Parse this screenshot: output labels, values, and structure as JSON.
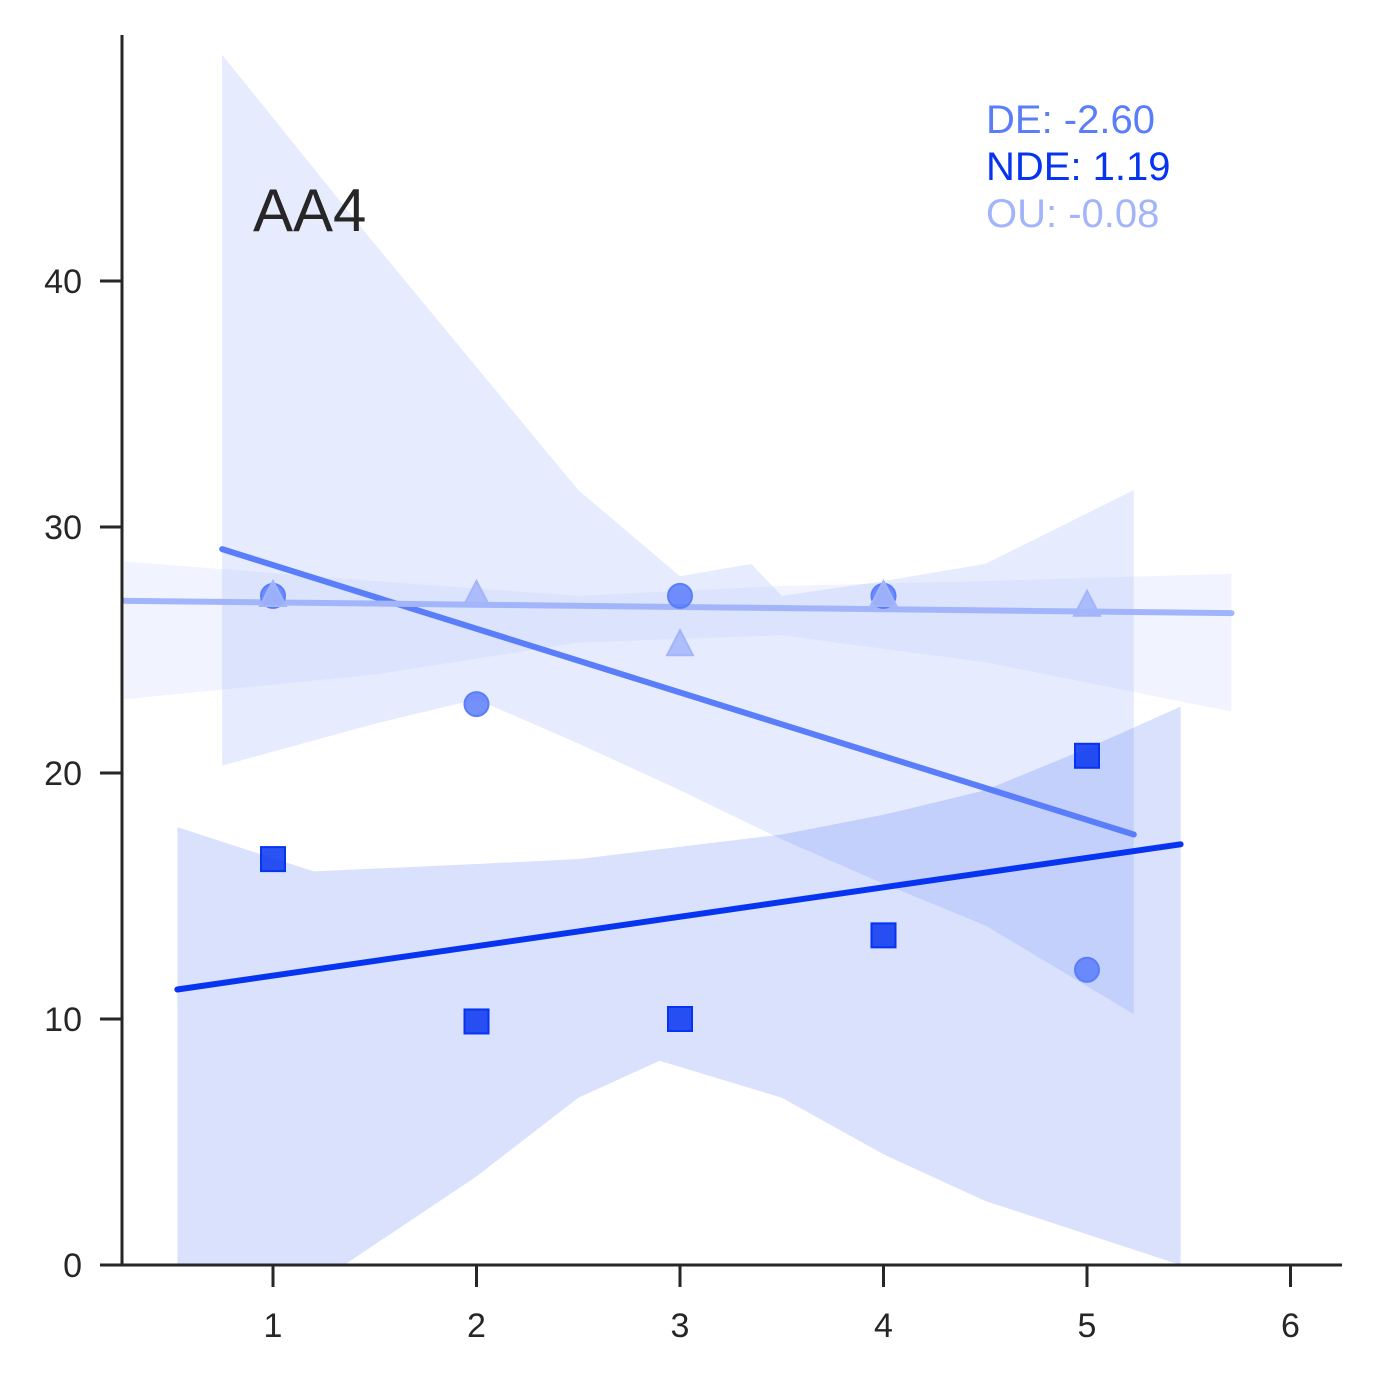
{
  "chart_data": {
    "type": "scatter",
    "title": "",
    "xlabel": "",
    "ylabel": "",
    "xlim": [
      0.25,
      6.25
    ],
    "ylim": [
      0,
      50
    ],
    "xticks": [
      "1",
      "2",
      "3",
      "4",
      "5",
      "6"
    ],
    "yticks": [
      "0",
      "10",
      "20",
      "30",
      "40"
    ],
    "grid": false,
    "panel_label": "AA4",
    "annotations": [
      {
        "text": "DE: -2.60",
        "color": "#5a7dfa"
      },
      {
        "text": "NDE: 1.19",
        "color": "#0634f0"
      },
      {
        "text": "OU: -0.08",
        "color": "#a3b5fa"
      }
    ],
    "series": [
      {
        "marker": "circle",
        "color": "#5a7dfa",
        "points": [
          [
            1,
            27.2
          ],
          [
            2,
            22.8
          ],
          [
            3,
            27.2
          ],
          [
            4,
            27.2
          ],
          [
            5,
            12.0
          ]
        ],
        "fit": {
          "x": [
            0.75,
            5.23
          ],
          "y": [
            29.1,
            17.5
          ]
        },
        "band": {
          "upper": [
            [
              0.75,
              49.2
            ],
            [
              1.5,
              41.5
            ],
            [
              2.0,
              36.5
            ],
            [
              2.5,
              31.5
            ],
            [
              3.0,
              28.0
            ],
            [
              3.35,
              28.5
            ],
            [
              3.5,
              27.2
            ],
            [
              4.0,
              27.8
            ],
            [
              4.5,
              28.5
            ],
            [
              5.23,
              31.5
            ]
          ],
          "lower": [
            [
              0.75,
              20.3
            ],
            [
              1.5,
              22.0
            ],
            [
              2.0,
              23.0
            ],
            [
              2.5,
              21.2
            ],
            [
              3.0,
              19.3
            ],
            [
              3.5,
              17.3
            ],
            [
              4.0,
              15.5
            ],
            [
              4.5,
              13.8
            ],
            [
              5.23,
              10.2
            ]
          ]
        }
      },
      {
        "marker": "square",
        "color": "#0634f0",
        "points": [
          [
            1,
            16.5
          ],
          [
            2,
            9.9
          ],
          [
            3,
            10.0
          ],
          [
            4,
            13.4
          ],
          [
            5,
            20.7
          ]
        ],
        "fit": {
          "x": [
            0.53,
            5.46
          ],
          "y": [
            11.2,
            17.1
          ]
        },
        "band": {
          "upper": [
            [
              0.53,
              17.8
            ],
            [
              1.2,
              16.0
            ],
            [
              2.0,
              16.3
            ],
            [
              2.5,
              16.5
            ],
            [
              3.0,
              17.0
            ],
            [
              3.5,
              17.5
            ],
            [
              4.0,
              18.3
            ],
            [
              4.5,
              19.3
            ],
            [
              5.0,
              21.0
            ],
            [
              5.46,
              22.7
            ]
          ],
          "lower": [
            [
              0.53,
              0
            ],
            [
              1.35,
              0
            ],
            [
              2.0,
              3.6
            ],
            [
              2.5,
              6.8
            ],
            [
              2.9,
              8.3
            ],
            [
              3.5,
              6.8
            ],
            [
              4.0,
              4.5
            ],
            [
              4.5,
              2.6
            ],
            [
              5.46,
              0
            ]
          ]
        }
      },
      {
        "marker": "triangle",
        "color": "#a3b5fa",
        "points": [
          [
            1,
            27.2
          ],
          [
            2,
            27.2
          ],
          [
            3,
            25.2
          ],
          [
            4,
            27.2
          ],
          [
            5,
            26.8
          ]
        ],
        "fit": {
          "x": [
            0.27,
            5.71
          ],
          "y": [
            27.0,
            26.5
          ]
        },
        "band": {
          "upper": [
            [
              0.27,
              28.6
            ],
            [
              1.5,
              27.8
            ],
            [
              2.5,
              27.2
            ],
            [
              3.5,
              27.6
            ],
            [
              4.5,
              27.8
            ],
            [
              5.71,
              28.1
            ]
          ],
          "lower": [
            [
              0.27,
              23.0
            ],
            [
              1.5,
              24.0
            ],
            [
              2.5,
              25.3
            ],
            [
              3.5,
              25.6
            ],
            [
              4.5,
              24.5
            ],
            [
              5.71,
              22.5
            ]
          ]
        }
      }
    ]
  }
}
